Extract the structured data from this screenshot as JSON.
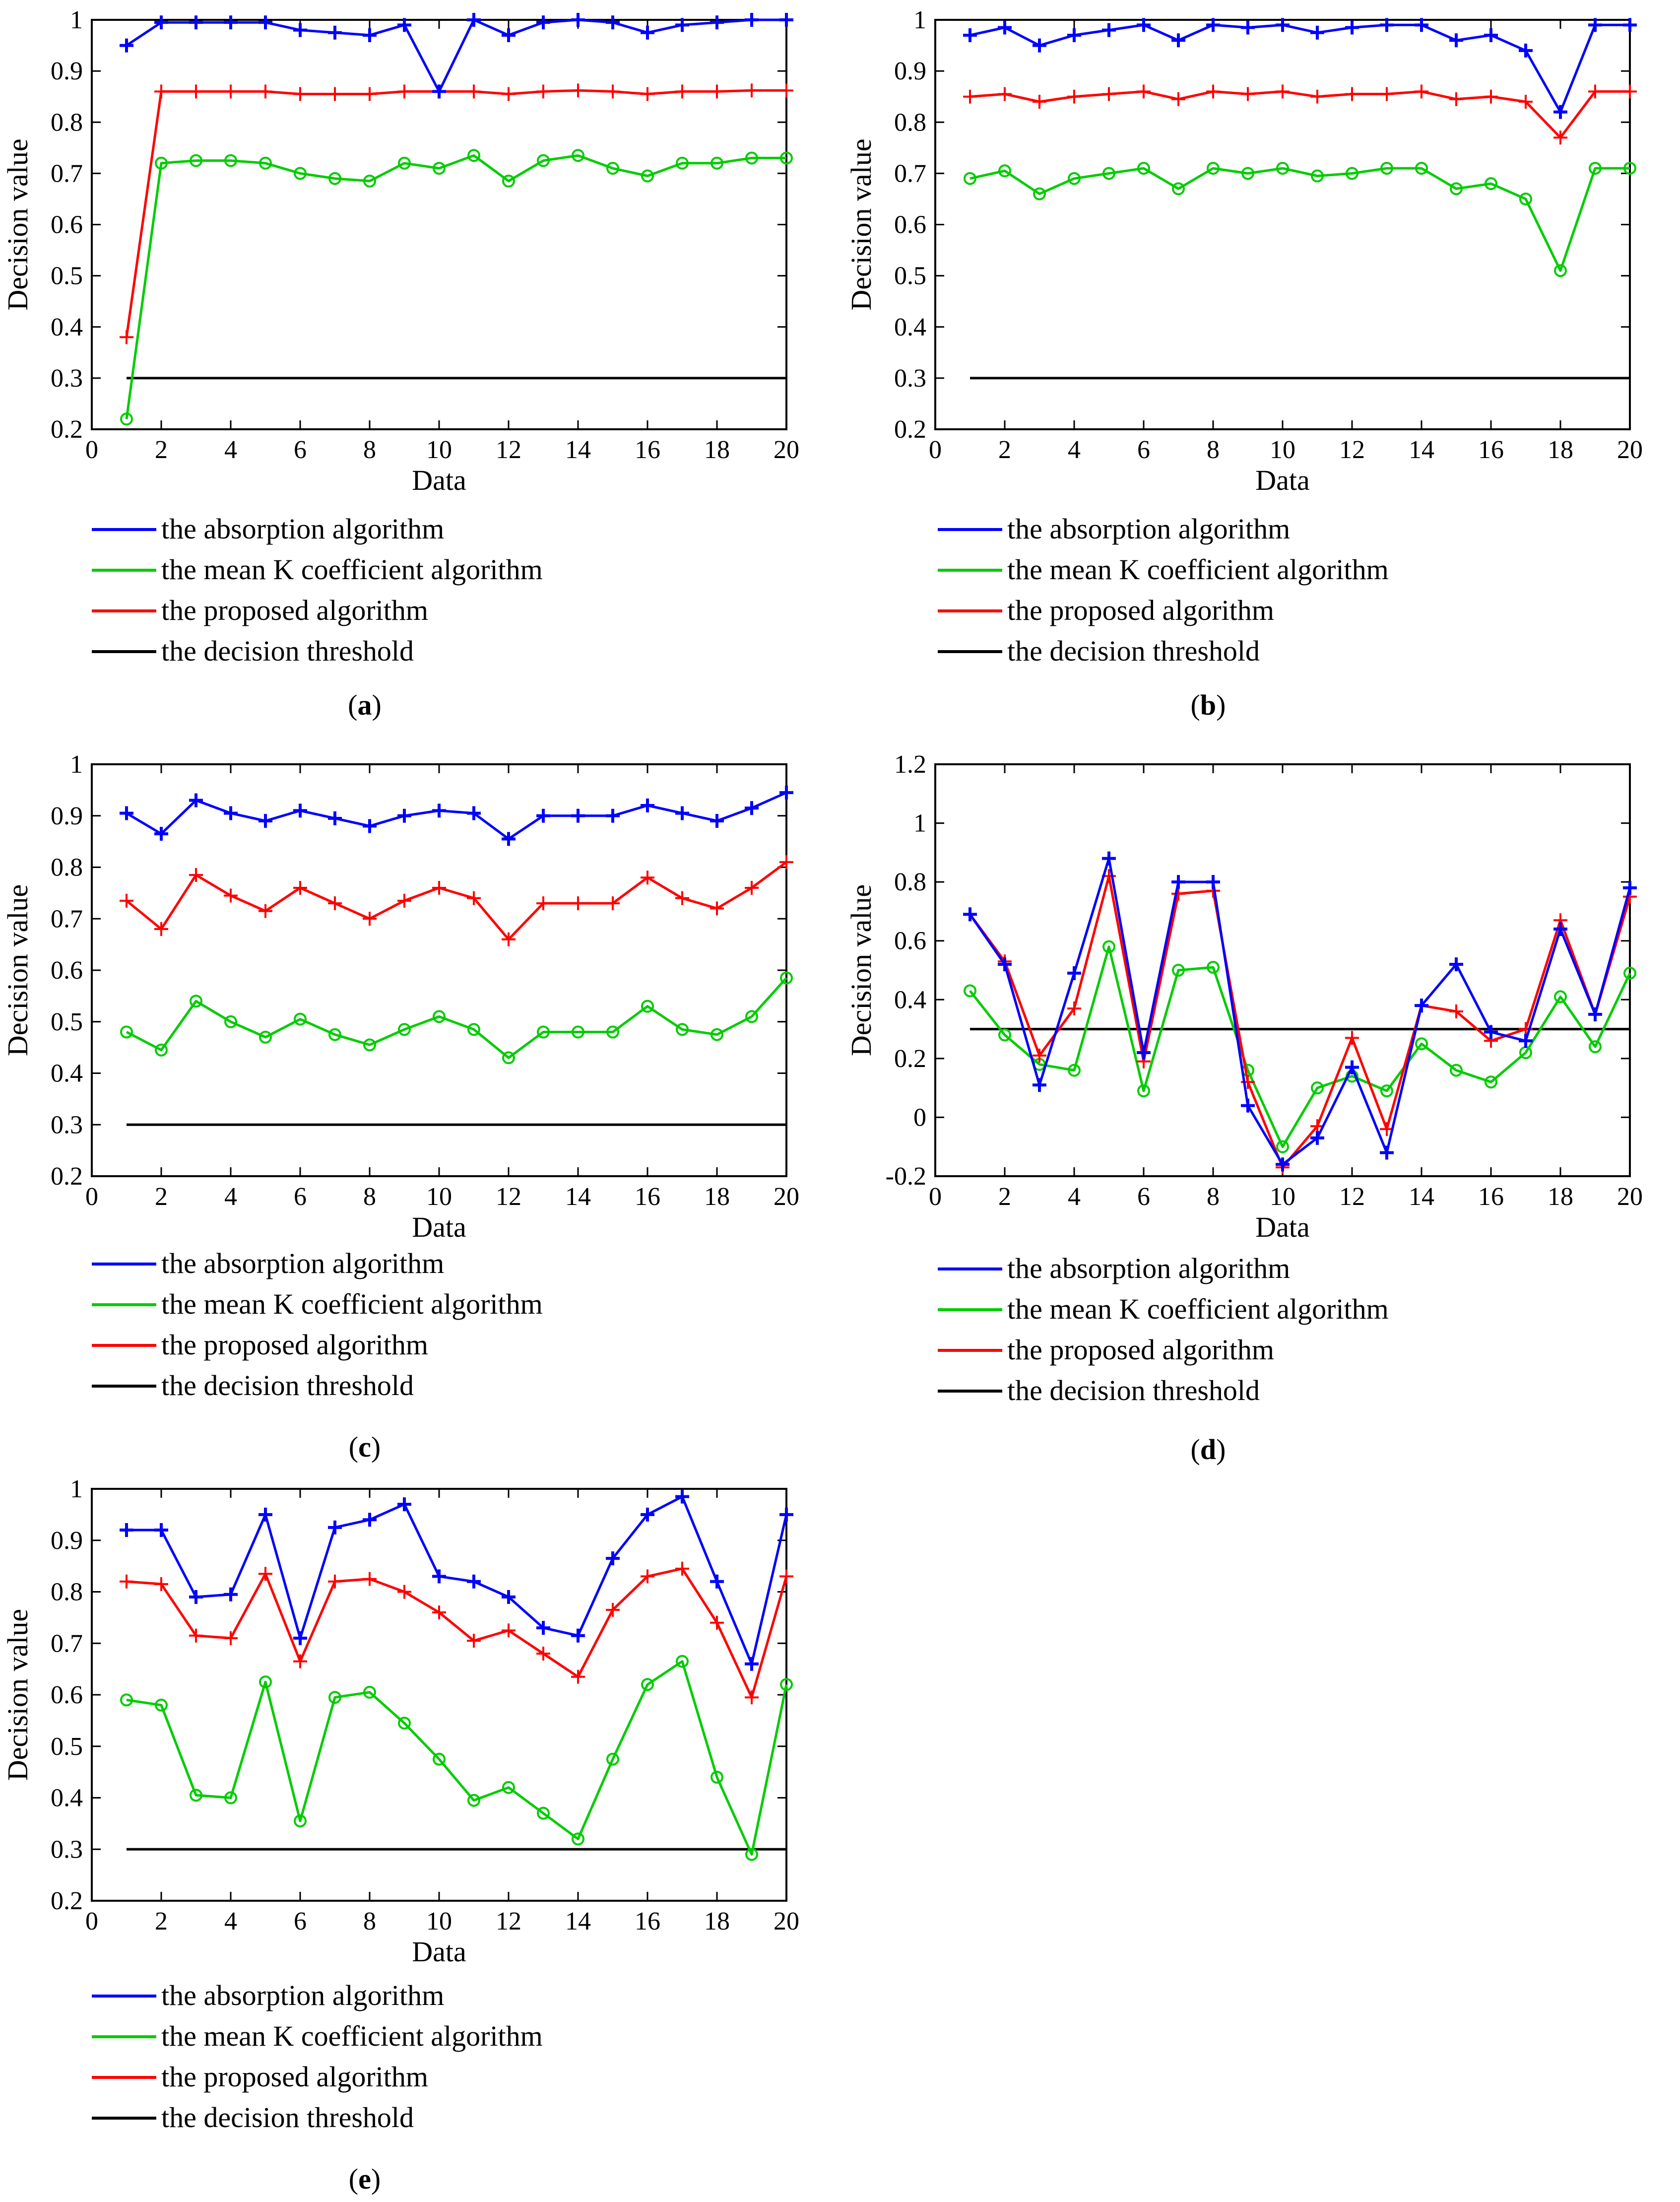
{
  "chart_data": [
    {
      "id": "a",
      "type": "line",
      "caption": {
        "open": "(",
        "letter": "a",
        "close": ")"
      },
      "xlabel": "Data",
      "ylabel": "Decision value",
      "xlim": [
        0,
        20
      ],
      "ylim": [
        0.2,
        1
      ],
      "xticks": [
        "0",
        "2",
        "4",
        "6",
        "8",
        "10",
        "12",
        "14",
        "16",
        "18",
        "20"
      ],
      "yticks": [
        "0.2",
        "0.3",
        "0.4",
        "0.5",
        "0.6",
        "0.7",
        "0.8",
        "0.9",
        "1"
      ],
      "x": [
        1,
        2,
        3,
        4,
        5,
        6,
        7,
        8,
        9,
        10,
        11,
        12,
        13,
        14,
        15,
        16,
        17,
        18,
        19,
        20
      ],
      "series": [
        {
          "name": "the absorption algorithm",
          "color": "#0000ff",
          "marker": "plus",
          "values": [
            0.95,
            0.995,
            0.995,
            0.995,
            0.995,
            0.98,
            0.975,
            0.97,
            0.99,
            0.86,
            1.0,
            0.97,
            0.995,
            1.0,
            0.995,
            0.975,
            0.99,
            0.995,
            1.0,
            1.0
          ]
        },
        {
          "name": "the mean K coefficient algorithm",
          "color": "#00cc00",
          "marker": "circle",
          "values": [
            0.22,
            0.72,
            0.725,
            0.725,
            0.72,
            0.7,
            0.69,
            0.685,
            0.72,
            0.71,
            0.735,
            0.685,
            0.725,
            0.735,
            0.71,
            0.695,
            0.72,
            0.72,
            0.73,
            0.73
          ]
        },
        {
          "name": "the proposed algorithm",
          "color": "#ff0000",
          "marker": "plus",
          "values": [
            0.38,
            0.86,
            0.86,
            0.86,
            0.86,
            0.855,
            0.855,
            0.855,
            0.86,
            0.86,
            0.86,
            0.855,
            0.86,
            0.862,
            0.86,
            0.855,
            0.86,
            0.86,
            0.862,
            0.862
          ]
        },
        {
          "name": "the decision threshold",
          "color": "#000000",
          "marker": "none",
          "values": [
            0.3,
            0.3,
            0.3,
            0.3,
            0.3,
            0.3,
            0.3,
            0.3,
            0.3,
            0.3,
            0.3,
            0.3,
            0.3,
            0.3,
            0.3,
            0.3,
            0.3,
            0.3,
            0.3,
            0.3
          ]
        }
      ]
    },
    {
      "id": "b",
      "type": "line",
      "caption": {
        "open": "(",
        "letter": "b",
        "close": ")"
      },
      "xlabel": "Data",
      "ylabel": "Decision value",
      "xlim": [
        0,
        20
      ],
      "ylim": [
        0.2,
        1
      ],
      "xticks": [
        "0",
        "2",
        "4",
        "6",
        "8",
        "10",
        "12",
        "14",
        "16",
        "18",
        "20"
      ],
      "yticks": [
        "0.2",
        "0.3",
        "0.4",
        "0.5",
        "0.6",
        "0.7",
        "0.8",
        "0.9",
        "1"
      ],
      "x": [
        1,
        2,
        3,
        4,
        5,
        6,
        7,
        8,
        9,
        10,
        11,
        12,
        13,
        14,
        15,
        16,
        17,
        18,
        19,
        20
      ],
      "series": [
        {
          "name": "the absorption algorithm",
          "color": "#0000ff",
          "marker": "plus",
          "values": [
            0.97,
            0.985,
            0.95,
            0.97,
            0.98,
            0.99,
            0.96,
            0.99,
            0.985,
            0.99,
            0.975,
            0.985,
            0.99,
            0.99,
            0.96,
            0.97,
            0.94,
            0.82,
            0.99,
            0.99
          ]
        },
        {
          "name": "the mean K coefficient algorithm",
          "color": "#00cc00",
          "marker": "circle",
          "values": [
            0.69,
            0.705,
            0.66,
            0.69,
            0.7,
            0.71,
            0.67,
            0.71,
            0.7,
            0.71,
            0.695,
            0.7,
            0.71,
            0.71,
            0.67,
            0.68,
            0.65,
            0.51,
            0.71,
            0.71
          ]
        },
        {
          "name": "the proposed algorithm",
          "color": "#ff0000",
          "marker": "plus",
          "values": [
            0.85,
            0.855,
            0.84,
            0.85,
            0.855,
            0.86,
            0.845,
            0.86,
            0.855,
            0.86,
            0.85,
            0.855,
            0.855,
            0.86,
            0.845,
            0.85,
            0.84,
            0.77,
            0.86,
            0.86
          ]
        },
        {
          "name": "the decision threshold",
          "color": "#000000",
          "marker": "none",
          "values": [
            0.3,
            0.3,
            0.3,
            0.3,
            0.3,
            0.3,
            0.3,
            0.3,
            0.3,
            0.3,
            0.3,
            0.3,
            0.3,
            0.3,
            0.3,
            0.3,
            0.3,
            0.3,
            0.3,
            0.3
          ]
        }
      ]
    },
    {
      "id": "c",
      "type": "line",
      "caption": {
        "open": "(",
        "letter": "c",
        "close": ")"
      },
      "xlabel": "Data",
      "ylabel": "Decision value",
      "xlim": [
        0,
        20
      ],
      "ylim": [
        0.2,
        1
      ],
      "xticks": [
        "0",
        "2",
        "4",
        "6",
        "8",
        "10",
        "12",
        "14",
        "16",
        "18",
        "20"
      ],
      "yticks": [
        "0.2",
        "0.3",
        "0.4",
        "0.5",
        "0.6",
        "0.7",
        "0.8",
        "0.9",
        "1"
      ],
      "x": [
        1,
        2,
        3,
        4,
        5,
        6,
        7,
        8,
        9,
        10,
        11,
        12,
        13,
        14,
        15,
        16,
        17,
        18,
        19,
        20
      ],
      "series": [
        {
          "name": "the absorption algorithm",
          "color": "#0000ff",
          "marker": "plus",
          "values": [
            0.905,
            0.865,
            0.93,
            0.905,
            0.89,
            0.91,
            0.895,
            0.88,
            0.9,
            0.91,
            0.905,
            0.855,
            0.9,
            0.9,
            0.9,
            0.92,
            0.905,
            0.89,
            0.915,
            0.945
          ]
        },
        {
          "name": "the mean K coefficient algorithm",
          "color": "#00cc00",
          "marker": "circle",
          "values": [
            0.48,
            0.445,
            0.54,
            0.5,
            0.47,
            0.505,
            0.475,
            0.455,
            0.485,
            0.51,
            0.485,
            0.43,
            0.48,
            0.48,
            0.48,
            0.53,
            0.485,
            0.475,
            0.51,
            0.585
          ]
        },
        {
          "name": "the proposed algorithm",
          "color": "#ff0000",
          "marker": "plus",
          "values": [
            0.735,
            0.68,
            0.785,
            0.745,
            0.715,
            0.76,
            0.73,
            0.7,
            0.735,
            0.76,
            0.74,
            0.66,
            0.73,
            0.73,
            0.73,
            0.78,
            0.74,
            0.72,
            0.76,
            0.81
          ]
        },
        {
          "name": "the decision threshold",
          "color": "#000000",
          "marker": "none",
          "values": [
            0.3,
            0.3,
            0.3,
            0.3,
            0.3,
            0.3,
            0.3,
            0.3,
            0.3,
            0.3,
            0.3,
            0.3,
            0.3,
            0.3,
            0.3,
            0.3,
            0.3,
            0.3,
            0.3,
            0.3
          ]
        }
      ]
    },
    {
      "id": "d",
      "type": "line",
      "caption": {
        "open": "(",
        "letter": "d",
        "close": ")"
      },
      "xlabel": "Data",
      "ylabel": "Decision value",
      "xlim": [
        0,
        20
      ],
      "ylim": [
        -0.2,
        1.2
      ],
      "xticks": [
        "0",
        "2",
        "4",
        "6",
        "8",
        "10",
        "12",
        "14",
        "16",
        "18",
        "20"
      ],
      "yticks": [
        "-0.2",
        "0",
        "0.2",
        "0.4",
        "0.6",
        "0.8",
        "1",
        "1.2"
      ],
      "x": [
        1,
        2,
        3,
        4,
        5,
        6,
        7,
        8,
        9,
        10,
        11,
        12,
        13,
        14,
        15,
        16,
        17,
        18,
        19,
        20
      ],
      "series": [
        {
          "name": "the absorption algorithm",
          "color": "#0000ff",
          "marker": "plus",
          "values": [
            0.69,
            0.52,
            0.11,
            0.49,
            0.88,
            0.22,
            0.8,
            0.8,
            0.04,
            -0.16,
            -0.07,
            0.17,
            -0.12,
            0.38,
            0.52,
            0.29,
            0.26,
            0.64,
            0.35,
            0.78
          ]
        },
        {
          "name": "the mean K coefficient algorithm",
          "color": "#00cc00",
          "marker": "circle",
          "values": [
            0.43,
            0.28,
            0.18,
            0.16,
            0.58,
            0.09,
            0.5,
            0.51,
            0.16,
            -0.1,
            0.1,
            0.14,
            0.09,
            0.25,
            0.16,
            0.12,
            0.22,
            0.41,
            0.24,
            0.49
          ]
        },
        {
          "name": "the proposed algorithm",
          "color": "#ff0000",
          "marker": "plus",
          "values": [
            0.69,
            0.53,
            0.21,
            0.37,
            0.82,
            0.19,
            0.76,
            0.77,
            0.12,
            -0.17,
            -0.03,
            0.27,
            -0.04,
            0.38,
            0.36,
            0.26,
            0.3,
            0.67,
            0.35,
            0.75
          ]
        },
        {
          "name": "the decision threshold",
          "color": "#000000",
          "marker": "none",
          "values": [
            0.3,
            0.3,
            0.3,
            0.3,
            0.3,
            0.3,
            0.3,
            0.3,
            0.3,
            0.3,
            0.3,
            0.3,
            0.3,
            0.3,
            0.3,
            0.3,
            0.3,
            0.3,
            0.3,
            0.3
          ]
        }
      ]
    },
    {
      "id": "e",
      "type": "line",
      "caption": {
        "open": "(",
        "letter": "e",
        "close": ")"
      },
      "xlabel": "Data",
      "ylabel": "Decision value",
      "xlim": [
        0,
        20
      ],
      "ylim": [
        0.2,
        1
      ],
      "xticks": [
        "0",
        "2",
        "4",
        "6",
        "8",
        "10",
        "12",
        "14",
        "16",
        "18",
        "20"
      ],
      "yticks": [
        "0.2",
        "0.3",
        "0.4",
        "0.5",
        "0.6",
        "0.7",
        "0.8",
        "0.9",
        "1"
      ],
      "x": [
        1,
        2,
        3,
        4,
        5,
        6,
        7,
        8,
        9,
        10,
        11,
        12,
        13,
        14,
        15,
        16,
        17,
        18,
        19,
        20
      ],
      "series": [
        {
          "name": "the absorption algorithm",
          "color": "#0000ff",
          "marker": "plus",
          "values": [
            0.92,
            0.92,
            0.79,
            0.795,
            0.95,
            0.71,
            0.925,
            0.94,
            0.97,
            0.83,
            0.82,
            0.79,
            0.73,
            0.715,
            0.865,
            0.95,
            0.985,
            0.82,
            0.66,
            0.95
          ]
        },
        {
          "name": "the mean K coefficient algorithm",
          "color": "#00cc00",
          "marker": "circle",
          "values": [
            0.59,
            0.58,
            0.405,
            0.4,
            0.625,
            0.355,
            0.595,
            0.605,
            0.545,
            0.475,
            0.395,
            0.42,
            0.37,
            0.32,
            0.475,
            0.62,
            0.665,
            0.44,
            0.29,
            0.62
          ]
        },
        {
          "name": "the proposed algorithm",
          "color": "#ff0000",
          "marker": "plus",
          "values": [
            0.82,
            0.815,
            0.715,
            0.71,
            0.835,
            0.665,
            0.82,
            0.825,
            0.8,
            0.76,
            0.705,
            0.725,
            0.68,
            0.635,
            0.765,
            0.83,
            0.845,
            0.74,
            0.595,
            0.83
          ]
        },
        {
          "name": "the decision threshold",
          "color": "#000000",
          "marker": "none",
          "values": [
            0.3,
            0.3,
            0.3,
            0.3,
            0.3,
            0.3,
            0.3,
            0.3,
            0.3,
            0.3,
            0.3,
            0.3,
            0.3,
            0.3,
            0.3,
            0.3,
            0.3,
            0.3,
            0.3,
            0.3
          ]
        }
      ]
    }
  ]
}
